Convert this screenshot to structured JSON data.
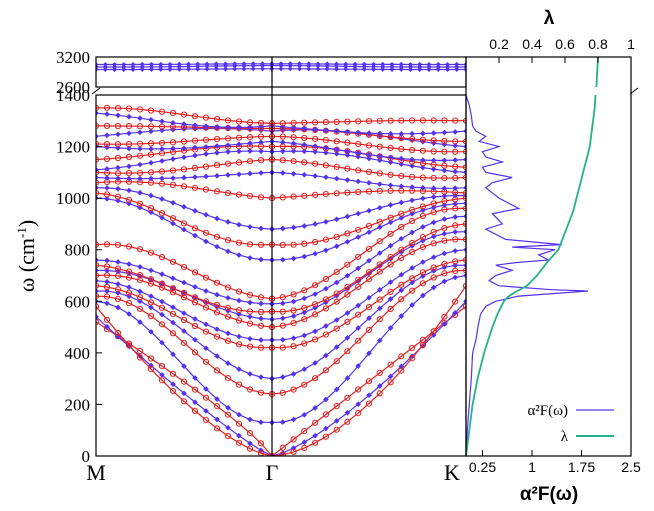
{
  "chart_data": [
    {
      "type": "line",
      "kind": "phonon-dispersion",
      "ylabel_base": "ω (cm",
      "ylabel_sup": "-1",
      "ylabel_close": ")",
      "x_ticks": [
        "M",
        "Γ",
        "K"
      ],
      "y_ticks": [
        "0",
        "200",
        "400",
        "600",
        "800",
        "1000",
        "1200",
        "1400"
      ],
      "y_ticks_high": [
        "2600",
        "3200"
      ],
      "ylim_low": [
        0,
        1400
      ],
      "ylim_high": [
        2600,
        3200
      ],
      "axis_break": "between 1400 and 2600",
      "grid": false,
      "series": [
        {
          "color": "#e02020",
          "marker": "circle"
        },
        {
          "color": "#5533ee",
          "marker": "diamond"
        }
      ],
      "branches_omega_at_M": [
        520,
        540,
        580,
        600,
        620,
        640,
        660,
        680,
        700,
        720,
        740,
        760,
        820,
        1000,
        1020,
        1040,
        1060,
        1080,
        1100,
        1110,
        1150,
        1200,
        1210,
        1240,
        1280,
        1330,
        1350
      ],
      "branches_omega_at_Gamma": [
        0,
        0,
        0,
        130,
        240,
        300,
        420,
        450,
        500,
        530,
        560,
        590,
        610,
        760,
        820,
        880,
        1000,
        1100,
        1150,
        1180,
        1200,
        1220,
        1240,
        1260,
        1270,
        1280,
        1290
      ],
      "branches_omega_at_K": [
        580,
        600,
        660,
        700,
        720,
        740,
        760,
        800,
        840,
        870,
        900,
        930,
        960,
        980,
        1000,
        1010,
        1020,
        1040,
        1080,
        1100,
        1120,
        1150,
        1180,
        1200,
        1220,
        1260,
        1300
      ],
      "high_branches_omega": [
        2950,
        3000,
        3050
      ]
    },
    {
      "type": "line",
      "kind": "eliashberg-function",
      "xlabel": "α²F(ω)",
      "x_ticks": [
        "0.25",
        "1",
        "1.75",
        "2.5"
      ],
      "xlim": [
        0,
        2.5
      ],
      "top_label": "λ",
      "top_ticks": [
        "0.2",
        "0.4",
        "0.6",
        "0.8",
        "1"
      ],
      "top_lim": [
        0,
        1
      ],
      "legend_position": "bottom-right",
      "series": [
        {
          "name": "α²F(ω)",
          "color": "#5533ee",
          "axis": "bottom",
          "omega": [
            0,
            100,
            200,
            300,
            400,
            450,
            500,
            550,
            580,
            600,
            620,
            640,
            645,
            660,
            680,
            700,
            720,
            740,
            750,
            760,
            780,
            800,
            810,
            820,
            840,
            880,
            900,
            940,
            960,
            1000,
            1040,
            1060,
            1080,
            1100,
            1120,
            1140,
            1160,
            1180,
            1200,
            1220,
            1240,
            1260,
            1280,
            1320,
            1360,
            1400
          ],
          "values": [
            0.0,
            0.02,
            0.05,
            0.08,
            0.1,
            0.15,
            0.18,
            0.22,
            0.3,
            0.45,
            0.8,
            1.85,
            1.3,
            0.5,
            0.35,
            0.45,
            0.7,
            0.45,
            0.75,
            1.25,
            1.1,
            1.35,
            0.7,
            1.45,
            0.6,
            0.3,
            0.55,
            0.4,
            0.8,
            0.5,
            0.3,
            0.4,
            0.7,
            0.3,
            0.25,
            0.55,
            0.3,
            0.25,
            0.5,
            0.2,
            0.3,
            0.15,
            0.1,
            0.08,
            0.05,
            0.0
          ]
        },
        {
          "name": "λ",
          "color": "#22b38a",
          "axis": "top",
          "omega": [
            0,
            100,
            200,
            300,
            400,
            500,
            550,
            600,
            620,
            640,
            660,
            700,
            750,
            800,
            850,
            900,
            950,
            1000,
            1050,
            1100,
            1150,
            1200,
            1250,
            1300,
            1350,
            1400,
            2600,
            3200
          ],
          "values": [
            0.0,
            0.02,
            0.04,
            0.07,
            0.11,
            0.16,
            0.19,
            0.23,
            0.26,
            0.31,
            0.37,
            0.43,
            0.49,
            0.56,
            0.59,
            0.62,
            0.65,
            0.67,
            0.69,
            0.71,
            0.73,
            0.75,
            0.76,
            0.77,
            0.78,
            0.785,
            0.79,
            0.8
          ]
        }
      ]
    }
  ]
}
